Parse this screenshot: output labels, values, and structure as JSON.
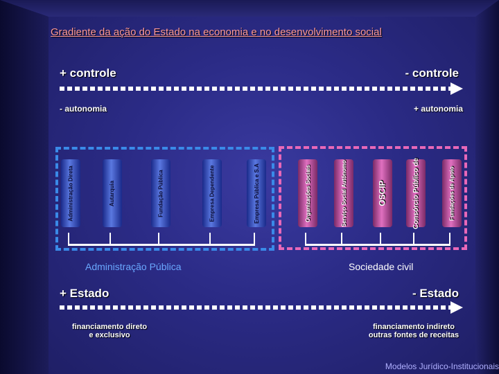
{
  "title": "Gradiente da ação do Estado na economia e no desenvolvimento social",
  "controle": {
    "left": "+ controle",
    "right": "- controle"
  },
  "autonomia": {
    "left": "- autonomia",
    "right": "+ autonomia"
  },
  "public_items": [
    "Administração Direta",
    "Autarquia",
    "Fundação Pública",
    "Empresa Dependente",
    "Empresa Pública e S.A"
  ],
  "civil_items": [
    "Organizações Sociais",
    "Serviço Social Autônomo",
    "OSCIP",
    "Consórcio Público de",
    "Fundações de Apoio"
  ],
  "sections": {
    "public": "Administração Pública",
    "civil": "Sociedade civil"
  },
  "estado": {
    "left": "+ Estado",
    "right": "- Estado"
  },
  "financiamento": {
    "left": [
      "financiamento direto",
      "e exclusivo"
    ],
    "right": [
      "financiamento indireto",
      "outras fontes de receitas"
    ]
  },
  "footer": "Modelos Jurídico-Institucionais",
  "colors": {
    "public_box": "#3a8ae8",
    "civil_box": "#e868b8",
    "title": "#ff9a9a"
  }
}
